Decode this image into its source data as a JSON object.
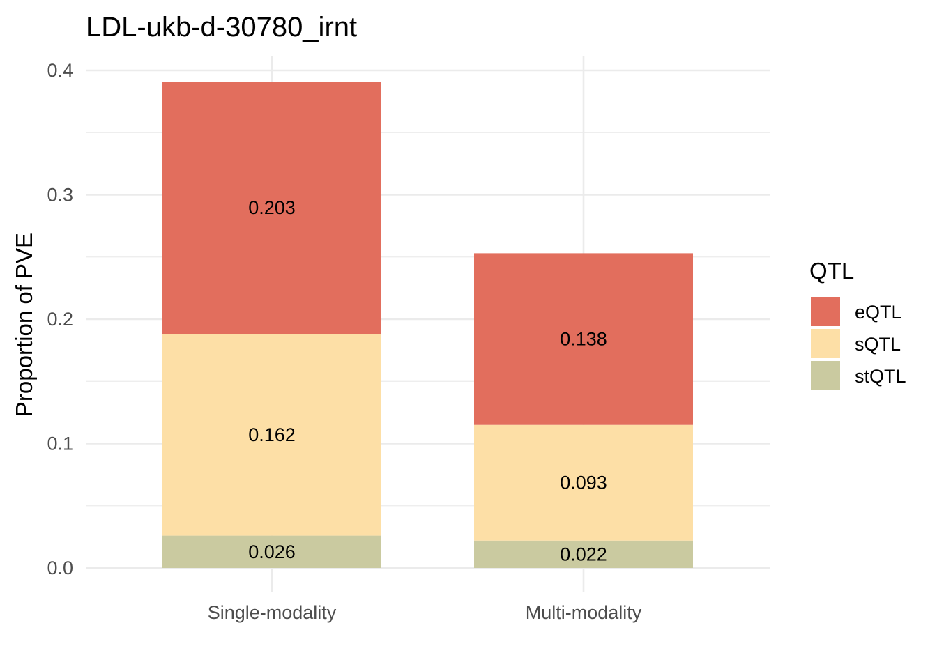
{
  "chart_data": {
    "type": "bar",
    "stacked": true,
    "title": "LDL-ukb-d-30780_irnt",
    "xlabel": "",
    "ylabel": "Proportion of PVE",
    "categories": [
      "Single-modality",
      "Multi-modality"
    ],
    "series": [
      {
        "name": "stQTL",
        "color": "#CACAA0",
        "values": [
          0.026,
          0.022
        ],
        "labels": [
          "0.026",
          "0.022"
        ]
      },
      {
        "name": "sQTL",
        "color": "#FDDFA6",
        "values": [
          0.162,
          0.093
        ],
        "labels": [
          "0.162",
          "0.093"
        ]
      },
      {
        "name": "eQTL",
        "color": "#E26E5D",
        "values": [
          0.203,
          0.138
        ],
        "labels": [
          "0.203",
          "0.138"
        ]
      }
    ],
    "ylim": [
      0,
      0.4
    ],
    "yticks": [
      "0.0",
      "0.1",
      "0.2",
      "0.3",
      "0.4"
    ],
    "grid": true,
    "legend": {
      "title": "QTL",
      "position": "right",
      "entries": [
        "eQTL",
        "sQTL",
        "stQTL"
      ]
    }
  }
}
